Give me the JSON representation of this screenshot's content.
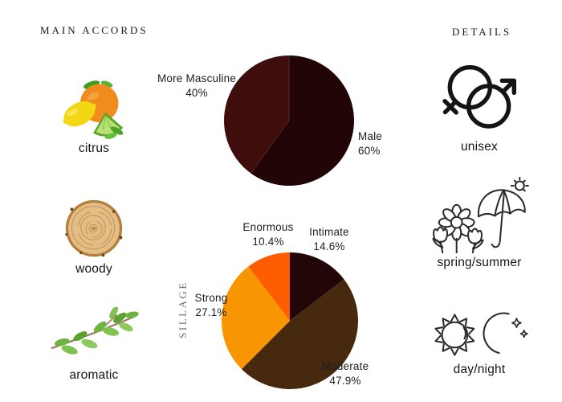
{
  "headers": {
    "main_accords": "MAIN ACCORDS",
    "details": "DETAILS"
  },
  "accords": [
    {
      "label": "citrus"
    },
    {
      "label": "woody"
    },
    {
      "label": "aromatic"
    }
  ],
  "details": [
    {
      "label": "unisex"
    },
    {
      "label": "spring/summer"
    },
    {
      "label": "day/night"
    }
  ],
  "chart_data": [
    {
      "type": "pie",
      "id": "gender",
      "start_angle": "top",
      "direction": "clockwise",
      "divider_color": "#5b2a2a",
      "slices": [
        {
          "label": "Male",
          "value": 60,
          "pct_label": "60%",
          "color": "#220506"
        },
        {
          "label": "More Masculine",
          "value": 40,
          "pct_label": "40%",
          "color": "#400d0d"
        }
      ]
    },
    {
      "type": "pie",
      "id": "sillage",
      "side_label": "SILLAGE",
      "start_angle": "top",
      "direction": "clockwise",
      "slices": [
        {
          "label": "Intimate",
          "value": 14.6,
          "pct_label": "14.6%",
          "color": "#230607"
        },
        {
          "label": "Moderate",
          "value": 47.9,
          "pct_label": "47.9%",
          "color": "#46290f"
        },
        {
          "label": "Strong",
          "value": 27.1,
          "pct_label": "27.1%",
          "color": "#f79502"
        },
        {
          "label": "Enormous",
          "value": 10.4,
          "pct_label": "10.4%",
          "color": "#fe5d01"
        }
      ]
    }
  ]
}
